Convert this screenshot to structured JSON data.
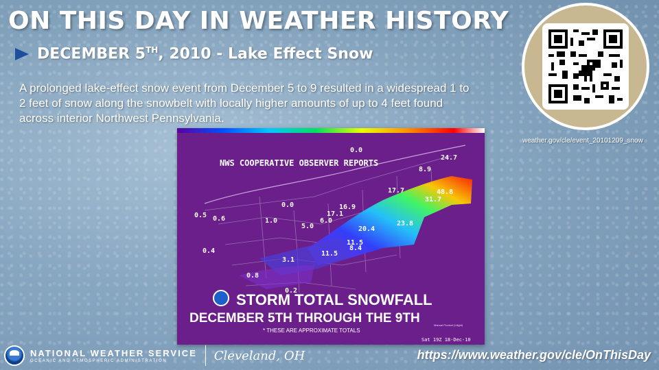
{
  "header": {
    "title": "ON THIS DAY IN WEATHER HISTORY",
    "date_main": "DECEMBER 5",
    "date_sup": "TH",
    "date_rest": ", 2010 - Lake Effect Snow",
    "description": "A prolonged lake-effect snow event from December 5 to 9 resulted in a widespread 1 to 2 feet of snow along the snowbelt with locally higher amounts of up to 4 feet found across interior Northwest Pennsylvania."
  },
  "qr": {
    "caption": "weather.gov/cle/event_20101209_snow",
    "icon": "dinosaur-icon"
  },
  "map": {
    "header": "NWS COOPERATIVE OBSERVER REPORTS",
    "title_line1": "STORM TOTAL SNOWFALL",
    "title_line2": "DECEMBER 5TH THROUGH THE 9TH",
    "footnote": "* THESE ARE APPROXIMATE TOTALS",
    "timestamp": "Sat 19Z 18-Dec-10",
    "product_note": "Manual Product (Lilight)",
    "values": [
      "0.0",
      "24.7",
      "8.9",
      "17.7",
      "48.8",
      "31.7",
      "0.0",
      "16.9",
      "17.1",
      "0.5",
      "0.6",
      "1.0",
      "5.0",
      "6.0",
      "20.4",
      "23.8",
      "11.5",
      "8.4",
      "0.4",
      "3.1",
      "11.5",
      "0.8",
      "0.2"
    ]
  },
  "footer": {
    "agency": "NATIONAL WEATHER SERVICE",
    "agency_sub": "OCEANIC AND ATMOSPHERIC ADMINISTRATION",
    "office": "Cleveland, OH",
    "url": "https://www.weather.gov/cle/OnThisDay"
  },
  "colors": {
    "map_background": "#6b1f8a",
    "accent_arrow": "#1f4f9c"
  }
}
